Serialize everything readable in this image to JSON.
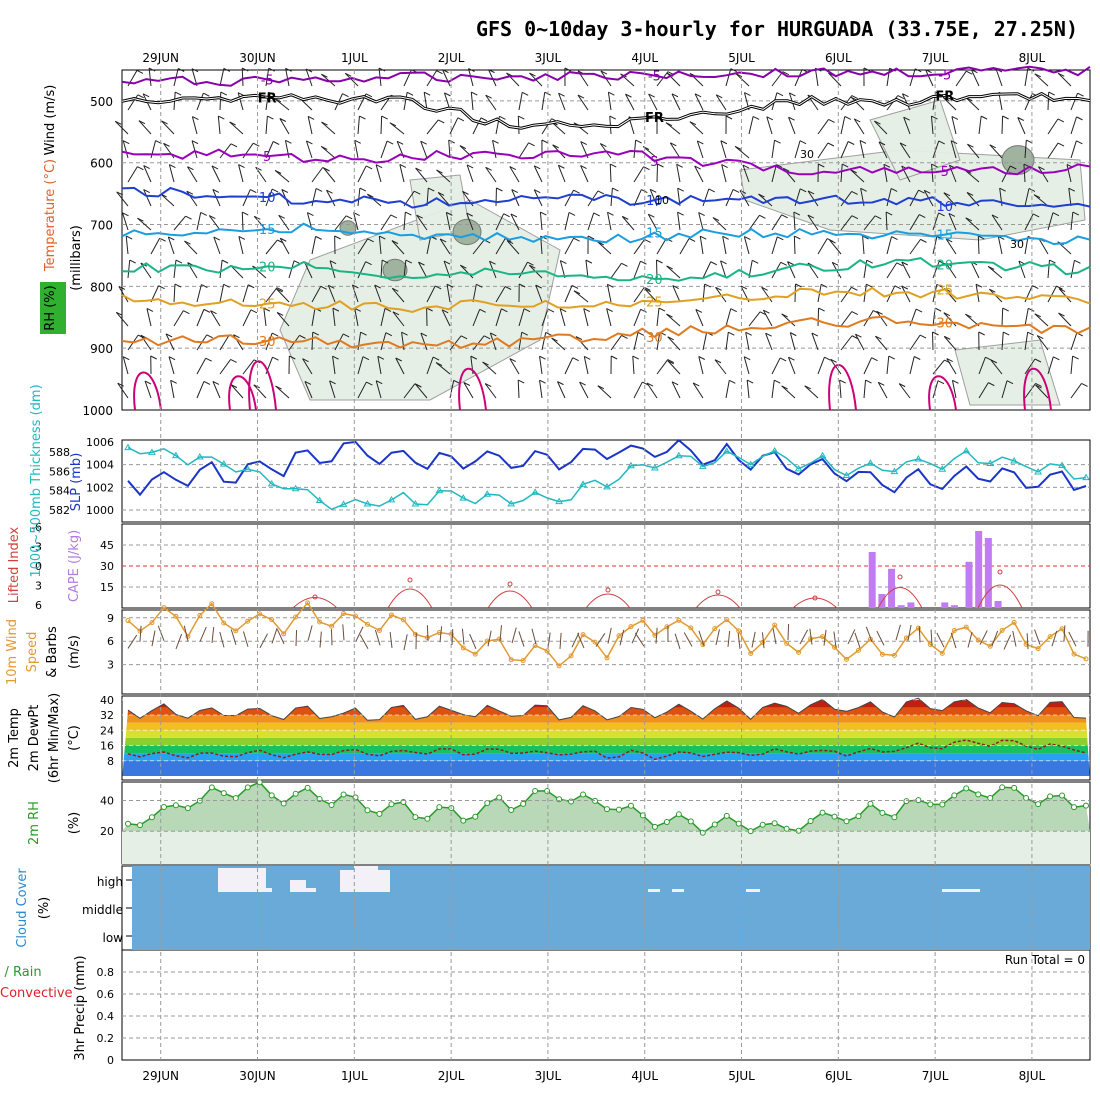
{
  "title": "GFS 0~10day 3-hourly for HURGUADA (33.75E, 27.25N)",
  "colors": {
    "rh_fill": "#e5efe5",
    "rh_fill2": "#c8dec8",
    "rh_fill3": "#9fb39f",
    "temp_neg5": "#8800aa",
    "temp_5": "#9900bb",
    "temp_10": "#1f3fd0",
    "temp_15": "#1a9ee0",
    "temp_20": "#19b585",
    "temp_25": "#e0a020",
    "temp_30": "#e07a20",
    "temp_35": "#cc0077",
    "freezing": "#000000",
    "slp": "#1a35c8",
    "thickness": "#22b8c0",
    "cape": "#c07cf0",
    "lifted_index": "#d04040",
    "wind10": "#e09a30",
    "rh2m": "#2a9a2a",
    "cloud_bg": "#6aaad8",
    "cloud_patch": "#f3f0f8",
    "precip_total": "#2a9a2a",
    "precip_conv": "#dd2222"
  },
  "chart_data": [
    {
      "type": "heatmap",
      "panel": "upper-air cross section",
      "x_ticks": [
        "29JUN",
        "30JUN",
        "1JUL",
        "2JUL",
        "3JUL",
        "4JUL",
        "5JUL",
        "6JUL",
        "7JUL",
        "8JUL"
      ],
      "y_ticks": [
        "500",
        "600",
        "700",
        "800",
        "900",
        "1000"
      ],
      "y_label": "(millibars)",
      "axis_labels": [
        "Wind (m/s)",
        "Temperature (°C)",
        "RH (%)"
      ],
      "ylim": [
        1000,
        450
      ],
      "rh_contour_labels": [
        "30",
        "10",
        "30"
      ],
      "temperature_contours": [
        {
          "label": "-5",
          "pressure_mb": [
            470,
            468,
            465,
            462,
            460,
            458,
            456,
            455,
            454,
            453,
            452
          ]
        },
        {
          "label": "FR",
          "pressure_mb": [
            497,
            495,
            495,
            500,
            540,
            540,
            520,
            500,
            500,
            495,
            497
          ]
        },
        {
          "label": "5",
          "pressure_mb": [
            590,
            585,
            595,
            590,
            585,
            585,
            598,
            612,
            615,
            612,
            610
          ]
        },
        {
          "label": "10",
          "pressure_mb": [
            645,
            652,
            660,
            665,
            658,
            660,
            662,
            658,
            662,
            665,
            665
          ]
        },
        {
          "label": "15",
          "pressure_mb": [
            718,
            710,
            705,
            720,
            720,
            725,
            715,
            715,
            718,
            722,
            725
          ]
        },
        {
          "label": "20",
          "pressure_mb": [
            770,
            770,
            765,
            785,
            775,
            785,
            785,
            770,
            760,
            765,
            775
          ]
        },
        {
          "label": "25",
          "pressure_mb": [
            820,
            825,
            830,
            835,
            825,
            830,
            825,
            810,
            810,
            815,
            825
          ]
        },
        {
          "label": "30",
          "pressure_mb": [
            890,
            885,
            890,
            895,
            890,
            880,
            870,
            860,
            855,
            865,
            870
          ]
        }
      ]
    },
    {
      "type": "line",
      "panel": "slp & thickness",
      "x": [
        "29JUN",
        "30JUN",
        "1JUL",
        "2JUL",
        "3JUL",
        "4JUL",
        "5JUL",
        "6JUL",
        "7JUL",
        "8JUL"
      ],
      "axis_labels": [
        "SLP (mb)",
        "1000~500mb Thickness (dm)"
      ],
      "left_ticks": [
        "1000",
        "1002",
        "1004",
        "1006"
      ],
      "right_ticks": [
        "582",
        "584",
        "586",
        "588"
      ],
      "series": [
        {
          "name": "SLP",
          "values": [
            1002.5,
            1003.2,
            1005.2,
            1004.5,
            1004.7,
            1005.3,
            1004.4,
            1002.6,
            1003.0,
            1002.4
          ]
        },
        {
          "name": "1000-500mb thickness",
          "values": [
            588.5,
            586.5,
            582.5,
            583.5,
            583.0,
            587.0,
            587.5,
            586.0,
            587.5,
            585.5
          ]
        }
      ]
    },
    {
      "type": "bar",
      "panel": "cape & lifted index",
      "axis_labels": [
        "Lifted Index",
        "CAPE (J/kg)"
      ],
      "left_ticks": [
        "-6",
        "-3",
        "0",
        "3",
        "6"
      ],
      "right_ticks": [
        "15",
        "30",
        "45"
      ],
      "cape_bars": [
        {
          "day": 7.35,
          "value": 40
        },
        {
          "day": 7.45,
          "value": 10
        },
        {
          "day": 7.55,
          "value": 28
        },
        {
          "day": 7.65,
          "value": 2
        },
        {
          "day": 7.75,
          "value": 4
        },
        {
          "day": 8.1,
          "value": 4
        },
        {
          "day": 8.2,
          "value": 2
        },
        {
          "day": 8.35,
          "value": 33
        },
        {
          "day": 8.45,
          "value": 55
        },
        {
          "day": 8.55,
          "value": 50
        },
        {
          "day": 8.65,
          "value": 5
        }
      ]
    },
    {
      "type": "line",
      "panel": "10m wind",
      "axis_labels": [
        "10m Wind",
        "Speed",
        "& Barbs",
        "(m/s)"
      ],
      "left_ticks": [
        "3",
        "6",
        "9"
      ],
      "series": [
        {
          "name": "10m Wind Speed",
          "values": [
            9,
            8.5,
            9,
            6.5,
            3.8,
            8.2,
            6,
            5,
            7.2,
            5.5
          ]
        }
      ]
    },
    {
      "type": "area",
      "panel": "2m temperature",
      "axis_labels": [
        "2m Temp",
        "2m DewPt",
        "(6hr Min/Max)",
        "(°C)"
      ],
      "left_ticks": [
        "8",
        "16",
        "24",
        "32",
        "40"
      ],
      "series": [
        {
          "name": "2m Temp",
          "values": [
            33,
            34,
            33,
            33,
            34,
            34,
            35,
            36,
            36,
            34
          ]
        },
        {
          "name": "2m DewPt",
          "values": [
            11,
            11,
            12,
            13,
            12,
            11,
            12,
            13,
            18,
            14
          ]
        }
      ]
    },
    {
      "type": "area",
      "panel": "2m rh",
      "axis_labels": [
        "2m RH",
        "(%)"
      ],
      "left_ticks": [
        "20",
        "40"
      ],
      "series": [
        {
          "name": "2m RH",
          "values": [
            25,
            48,
            40,
            30,
            46,
            27,
            22,
            32,
            45,
            40
          ]
        }
      ]
    },
    {
      "type": "heatmap",
      "panel": "cloud cover",
      "axis_labels": [
        "Cloud Cover",
        "(%)"
      ],
      "levels": [
        "high",
        "middle",
        "low"
      ]
    },
    {
      "type": "line",
      "panel": "precipitation",
      "axis_labels": [
        "Total / Rain",
        "Convective",
        "3hr Precip (mm)"
      ],
      "left_ticks": [
        "0",
        "0.2",
        "0.4",
        "0.6",
        "0.8"
      ],
      "run_total": "Run Total = 0",
      "ylim": [
        0,
        1
      ]
    }
  ]
}
